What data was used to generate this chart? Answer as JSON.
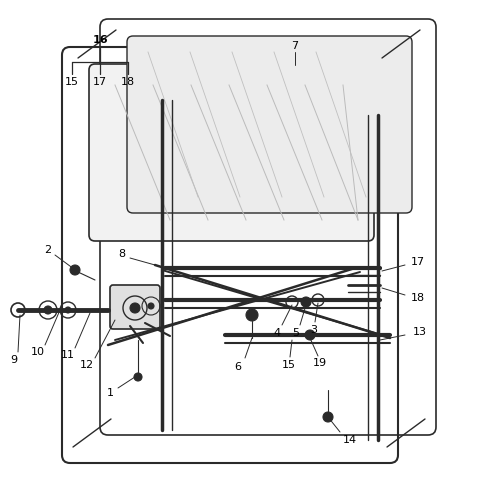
{
  "bg_color": "#ffffff",
  "line_color": "#2a2a2a",
  "label_color": "#000000",
  "fig_width": 4.8,
  "fig_height": 4.79,
  "dpi": 100
}
